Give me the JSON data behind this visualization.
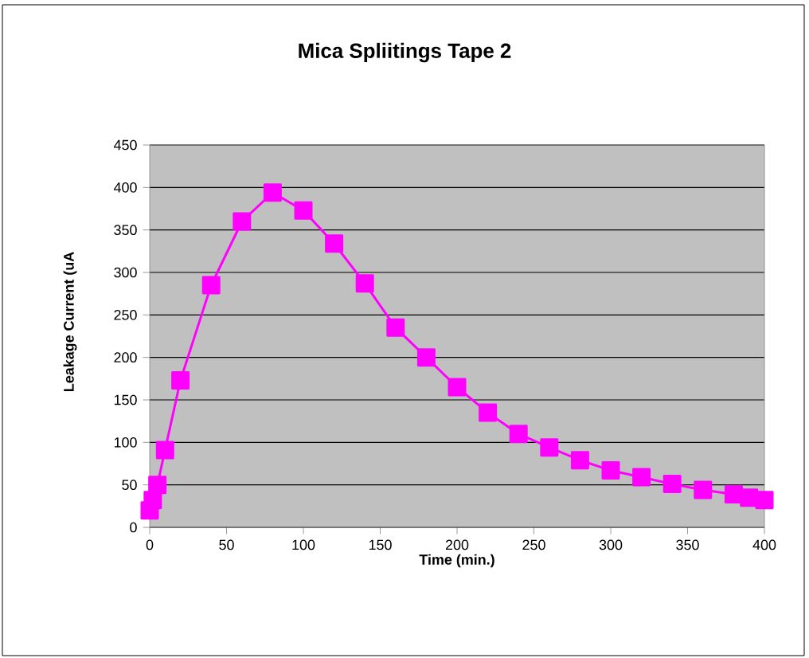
{
  "chart_data": {
    "type": "line",
    "title": "Mica Spliitings Tape 2",
    "xlabel": "Time (min.)",
    "ylabel": "Leakage Current  (uA",
    "series": [
      {
        "color": "#ff00ff",
        "x": [
          0,
          2,
          5,
          10,
          20,
          40,
          60,
          80,
          100,
          120,
          140,
          160,
          180,
          200,
          220,
          240,
          260,
          280,
          300,
          320,
          340,
          360,
          380,
          390,
          400
        ],
        "values": [
          20,
          32,
          50,
          91,
          173,
          285,
          360,
          394,
          373,
          334,
          287,
          235,
          200,
          165,
          135,
          110,
          94,
          79,
          67,
          59,
          51,
          44,
          39,
          35,
          32
        ]
      }
    ],
    "xlim": [
      0,
      400
    ],
    "ylim": [
      0,
      450
    ],
    "xticks": [
      0,
      50,
      100,
      150,
      200,
      250,
      300,
      350,
      400
    ],
    "yticks": [
      0,
      50,
      100,
      150,
      200,
      250,
      300,
      350,
      400,
      450
    ],
    "grid": "y",
    "marker": "square",
    "line_style": "solid"
  }
}
